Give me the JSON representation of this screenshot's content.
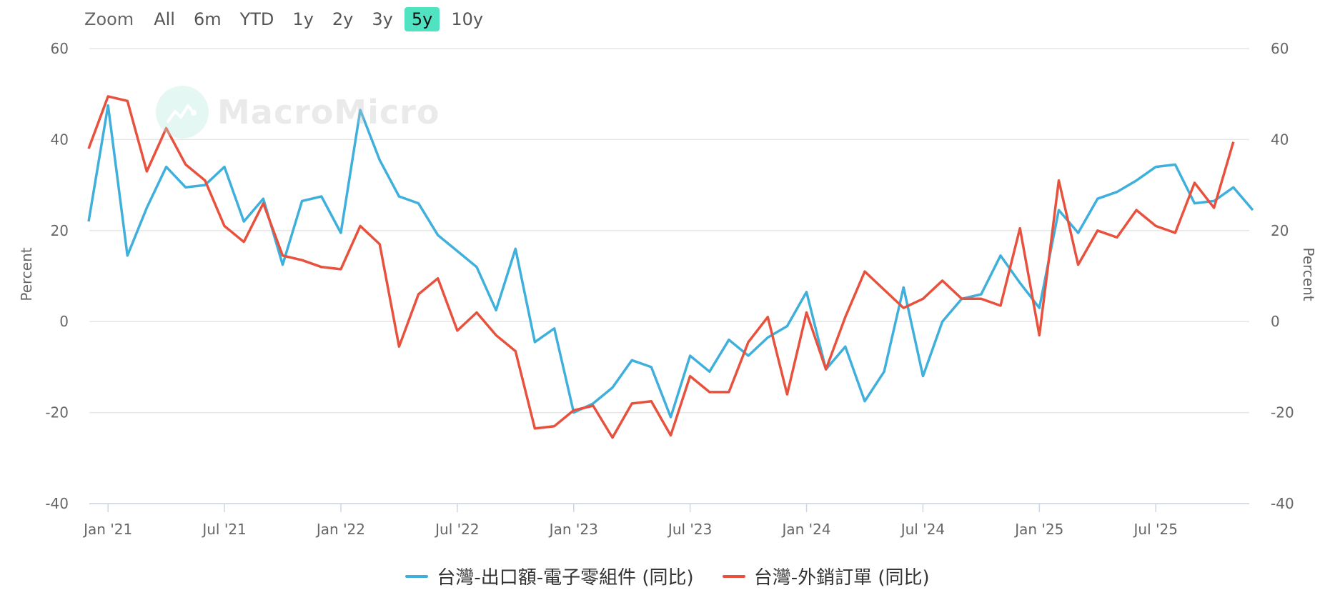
{
  "zoom": {
    "label": "Zoom",
    "buttons": [
      "All",
      "6m",
      "YTD",
      "1y",
      "2y",
      "3y",
      "5y",
      "10y"
    ],
    "active": "5y"
  },
  "watermark": {
    "text": "MacroMicro"
  },
  "colors": {
    "series1": "#3fb0dc",
    "series2": "#e8513d",
    "grid": "#e6e6e6",
    "active_zoom": "#4fe3c1"
  },
  "chart_data": {
    "type": "line",
    "ylabel_left": "Percent",
    "ylabel_right": "Percent",
    "ylim": [
      -40,
      60
    ],
    "yticks": [
      -40,
      -20,
      0,
      20,
      40,
      60
    ],
    "x_tick_labels": [
      "Jan '21",
      "Jul '21",
      "Jan '22",
      "Jul '22",
      "Jan '23",
      "Jul '23",
      "Jan '24",
      "Jul '24",
      "Jan '25",
      "Jul '25"
    ],
    "x_start": "2020-12",
    "grid": true,
    "legend_position": "bottom",
    "series": [
      {
        "name": "台灣-出口額-電子零組件 (同比)",
        "values": [
          22,
          47.5,
          14.5,
          25,
          34,
          29.5,
          30,
          34,
          22,
          27,
          12.5,
          26.5,
          27.5,
          19.5,
          46.5,
          35.5,
          27.5,
          26,
          19,
          15.5,
          12,
          2.5,
          16,
          -4.5,
          -1.5,
          -20,
          -18,
          -14.5,
          -8.5,
          -10,
          -21,
          -7.5,
          -11,
          -4,
          -7.5,
          -3.5,
          -1,
          6.5,
          -10.5,
          -5.5,
          -17.5,
          -11,
          7.5,
          -12,
          0,
          5,
          6,
          14.5,
          8.5,
          3,
          24.5,
          19.5,
          27,
          28.5,
          31,
          34,
          34.5,
          26,
          26.5,
          29.5,
          24.5
        ]
      },
      {
        "name": "台灣-外銷訂單 (同比)",
        "values": [
          38,
          49.5,
          48.5,
          33,
          42.5,
          34.5,
          31,
          21,
          17.5,
          26,
          14.5,
          13.5,
          12,
          11.5,
          21,
          17,
          -5.5,
          6,
          9.5,
          -2,
          2,
          -3,
          -6.5,
          -23.5,
          -23,
          -19.5,
          -18.5,
          -25.5,
          -18,
          -17.5,
          -25,
          -12,
          -15.5,
          -15.5,
          -4.5,
          1,
          -16,
          2,
          -10.5,
          1,
          11,
          7,
          3,
          5,
          9,
          5,
          5,
          3.5,
          20.5,
          -3,
          31,
          12.5,
          20,
          18.5,
          24.5,
          21,
          19.5,
          30.5,
          25,
          39.5
        ]
      }
    ]
  }
}
